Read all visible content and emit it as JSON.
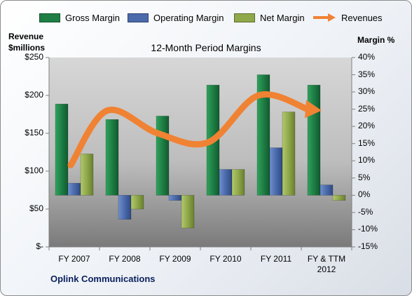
{
  "chart_data": {
    "type": "bar",
    "title": "12-Month Period Margins",
    "categories": [
      "FY 2007",
      "FY 2008",
      "FY 2009",
      "FY 2010",
      "FY 2011",
      "FY & TTM 2012"
    ],
    "series": [
      {
        "name": "Gross Margin",
        "values": [
          26.5,
          22,
          23,
          32,
          35,
          32
        ],
        "color": "#1e7e45"
      },
      {
        "name": "Operating Margin",
        "values": [
          3.5,
          -7,
          -1.5,
          7.5,
          13.8,
          3
        ],
        "color": "#4a6aab"
      },
      {
        "name": "Net Margin",
        "values": [
          12,
          -4,
          -9.5,
          7.5,
          24.2,
          -1.5
        ],
        "color": "#8fa84a"
      }
    ],
    "revenue_line": {
      "name": "Revenues",
      "values": [
        108,
        180,
        150,
        138,
        200,
        181
      ],
      "color": "#f08233"
    },
    "y_left": {
      "label_line1": "Revenue",
      "label_line2": "$millions",
      "ticks": [
        "$250",
        "$200",
        "$150",
        "$100",
        "$50",
        "$-"
      ],
      "range": [
        0,
        250
      ]
    },
    "y_right": {
      "label": "Margin %",
      "ticks": [
        "40%",
        "35%",
        "30%",
        "25%",
        "20%",
        "15%",
        "10%",
        "5%",
        "0%",
        "-5%",
        "-10%",
        "-15%"
      ],
      "range": [
        -15,
        40
      ]
    },
    "legend_position": "top",
    "grid": false
  },
  "footer": {
    "company": "Oplink Communications"
  }
}
